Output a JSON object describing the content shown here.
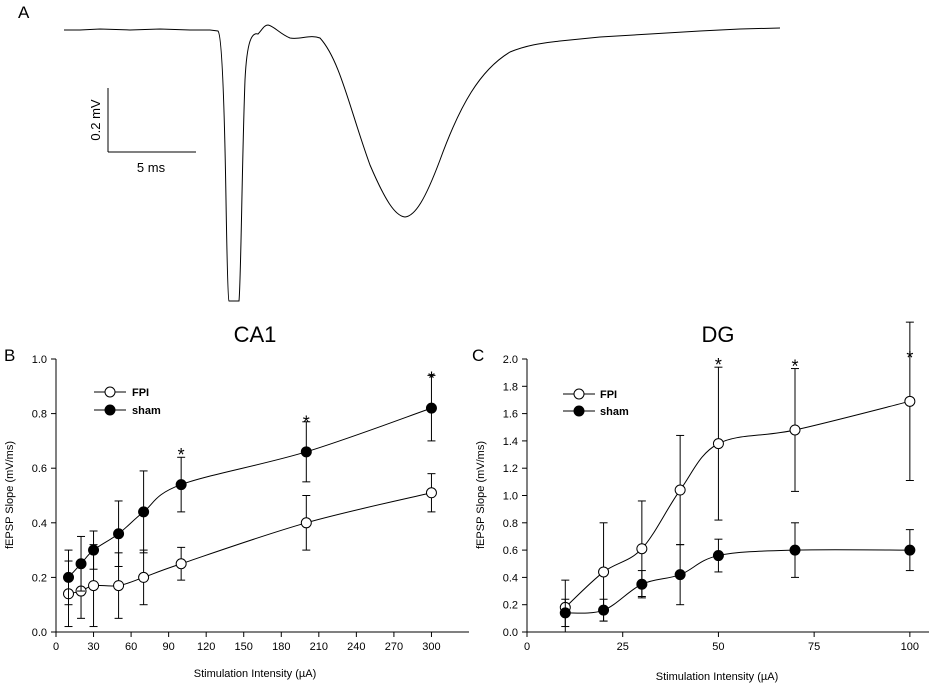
{
  "panel_a": {
    "label": "A",
    "scale_voltage": "0.2 mV",
    "scale_time": "5 ms"
  },
  "chart_data": [
    {
      "type": "line",
      "panel_label": "B",
      "title": "CA1",
      "xlabel": "Stimulation Intensity (µA)",
      "ylabel": "fEPSP Slope (mV/ms)",
      "xlim": [
        0,
        330
      ],
      "ylim": [
        0,
        1.0
      ],
      "xticks": [
        0,
        30,
        60,
        90,
        120,
        150,
        180,
        210,
        240,
        270,
        300
      ],
      "yticks": [
        0.0,
        0.2,
        0.4,
        0.6,
        0.8,
        1.0
      ],
      "ytick_labels": [
        "0.0",
        "0.2",
        "0.4",
        "0.6",
        "0.8",
        "1.0"
      ],
      "legend_position": "top-left",
      "series": [
        {
          "name": "FPI",
          "marker": "open-circle",
          "x": [
            10,
            20,
            30,
            50,
            70,
            100,
            200,
            300
          ],
          "y": [
            0.14,
            0.15,
            0.17,
            0.17,
            0.2,
            0.25,
            0.4,
            0.51
          ],
          "err": [
            0.12,
            0.1,
            0.15,
            0.12,
            0.1,
            0.06,
            0.1,
            0.07
          ]
        },
        {
          "name": "sham",
          "marker": "filled-circle",
          "x": [
            10,
            20,
            30,
            50,
            70,
            100,
            200,
            300
          ],
          "y": [
            0.2,
            0.25,
            0.3,
            0.36,
            0.44,
            0.54,
            0.66,
            0.82
          ],
          "err": [
            0.1,
            0.1,
            0.07,
            0.12,
            0.15,
            0.1,
            0.11,
            0.12
          ]
        }
      ],
      "annotations": [
        {
          "text": "*",
          "x": 100,
          "y": 0.67
        },
        {
          "text": "*",
          "x": 200,
          "y": 0.79
        },
        {
          "text": "*",
          "x": 300,
          "y": 0.95
        }
      ]
    },
    {
      "type": "line",
      "panel_label": "C",
      "title": "DG",
      "xlabel": "Stimulation Intensity (µA)",
      "ylabel": "fEPSP Slope (mV/ms)",
      "xlim": [
        0,
        105
      ],
      "ylim": [
        0,
        2.0
      ],
      "xticks": [
        0,
        25,
        50,
        75,
        100
      ],
      "yticks": [
        0.0,
        0.2,
        0.4,
        0.6,
        0.8,
        1.0,
        1.2,
        1.4,
        1.6,
        1.8,
        2.0
      ],
      "ytick_labels": [
        "0.0",
        "0.2",
        "0.4",
        "0.6",
        "0.8",
        "1.0",
        "1.2",
        "1.4",
        "1.6",
        "1.8",
        "2.0"
      ],
      "legend_position": "top-left",
      "series": [
        {
          "name": "FPI",
          "marker": "open-circle",
          "x": [
            10,
            20,
            30,
            40,
            50,
            70,
            100
          ],
          "y": [
            0.18,
            0.44,
            0.61,
            1.04,
            1.38,
            1.48,
            1.69
          ],
          "err": [
            0.2,
            0.36,
            0.35,
            0.4,
            0.56,
            0.45,
            0.58
          ]
        },
        {
          "name": "sham",
          "marker": "filled-circle",
          "x": [
            10,
            20,
            30,
            40,
            50,
            70,
            100
          ],
          "y": [
            0.14,
            0.16,
            0.35,
            0.42,
            0.56,
            0.6,
            0.6
          ],
          "err": [
            0.1,
            0.08,
            0.1,
            0.22,
            0.12,
            0.2,
            0.15
          ]
        }
      ],
      "annotations": [
        {
          "text": "*",
          "x": 50,
          "y": 2.0
        },
        {
          "text": "*",
          "x": 70,
          "y": 1.99
        },
        {
          "text": "*",
          "x": 100,
          "y": 2.05
        }
      ]
    }
  ]
}
